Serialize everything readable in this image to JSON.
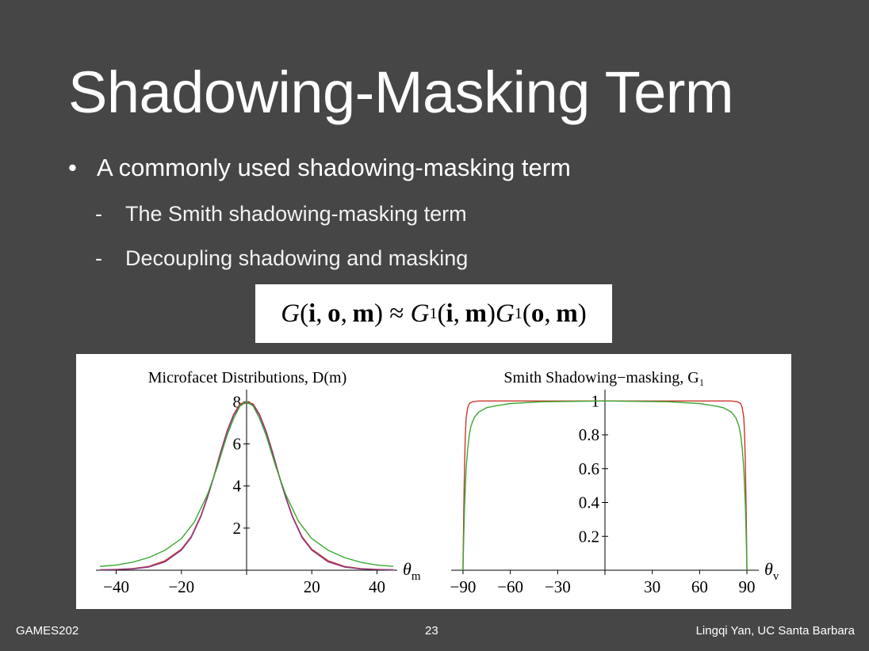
{
  "slide": {
    "title": "Shadowing-Masking Term",
    "bullet": "A commonly used shadowing-masking term",
    "bullet_marker": "•",
    "sub_marker": "-",
    "subbullets": [
      "The Smith shadowing-masking term",
      "Decoupling shadowing and masking"
    ],
    "formula": {
      "lhs_fn": "G",
      "args_full": [
        "i",
        "o",
        "m"
      ],
      "approx": "≈",
      "rhs_fn": "G",
      "rhs_sub": "1",
      "rhs_args1": [
        "i",
        "m"
      ],
      "rhs_args2": [
        "o",
        "m"
      ]
    }
  },
  "footer": {
    "left": "GAMES202",
    "page": "23",
    "right": "Lingqi Yan, UC Santa Barbara"
  },
  "colors": {
    "background": "#464646",
    "red": "#c8382a",
    "green": "#3aa832",
    "purple": "#8a3a8c"
  },
  "chart_data": [
    {
      "type": "line",
      "title": "Microfacet Distributions, D(m)",
      "xlabel": "θm",
      "xlim": [
        -45,
        45
      ],
      "ylim": [
        0,
        8.2
      ],
      "xticks": [
        -40,
        -20,
        20,
        40
      ],
      "yticks": [
        2,
        4,
        6,
        8
      ],
      "series": [
        {
          "color": "#c8382a",
          "x": [
            -45,
            -40,
            -35,
            -30,
            -25,
            -20,
            -17,
            -14,
            -12,
            -10,
            -8,
            -6,
            -4,
            -2,
            0,
            2,
            4,
            6,
            8,
            10,
            12,
            14,
            17,
            20,
            25,
            30,
            35,
            40,
            45
          ],
          "y": [
            0.02,
            0.04,
            0.08,
            0.18,
            0.45,
            1.0,
            1.6,
            2.6,
            3.5,
            4.5,
            5.6,
            6.6,
            7.4,
            7.9,
            8.0,
            7.9,
            7.4,
            6.6,
            5.6,
            4.5,
            3.5,
            2.6,
            1.6,
            1.0,
            0.45,
            0.18,
            0.08,
            0.04,
            0.02
          ]
        },
        {
          "color": "#8a3a8c",
          "x": [
            -45,
            -40,
            -35,
            -30,
            -25,
            -20,
            -17,
            -14,
            -12,
            -10,
            -8,
            -6,
            -4,
            -2,
            0,
            2,
            4,
            6,
            8,
            10,
            12,
            14,
            17,
            20,
            25,
            30,
            35,
            40,
            45
          ],
          "y": [
            0.02,
            0.03,
            0.06,
            0.15,
            0.4,
            0.95,
            1.55,
            2.55,
            3.45,
            4.45,
            5.55,
            6.55,
            7.35,
            7.85,
            7.95,
            7.85,
            7.35,
            6.55,
            5.55,
            4.45,
            3.45,
            2.55,
            1.55,
            0.95,
            0.4,
            0.15,
            0.06,
            0.03,
            0.02
          ]
        },
        {
          "color": "#3aa832",
          "x": [
            -45,
            -40,
            -35,
            -30,
            -25,
            -20,
            -16,
            -12,
            -9,
            -6,
            -4,
            -2,
            0,
            2,
            4,
            6,
            9,
            12,
            16,
            20,
            25,
            30,
            35,
            40,
            45
          ],
          "y": [
            0.18,
            0.25,
            0.38,
            0.6,
            0.95,
            1.5,
            2.3,
            3.6,
            4.9,
            6.4,
            7.2,
            7.8,
            8.0,
            7.8,
            7.2,
            6.4,
            4.9,
            3.6,
            2.3,
            1.5,
            0.95,
            0.6,
            0.38,
            0.25,
            0.18
          ]
        }
      ]
    },
    {
      "type": "line",
      "title": "Smith Shadowing−masking, G₁",
      "xlabel": "θv",
      "xlim": [
        -95,
        95
      ],
      "ylim": [
        0,
        1.02
      ],
      "xticks": [
        -90,
        -60,
        -30,
        30,
        60,
        90
      ],
      "xticklabels": [
        "−90",
        "−60",
        "−30",
        "30",
        "60",
        "90"
      ],
      "yticks": [
        0.2,
        0.4,
        0.6,
        0.8,
        1
      ],
      "yticklabels": [
        "0.2",
        "0.4",
        "0.6",
        "0.8",
        "1"
      ],
      "series": [
        {
          "color": "#c8382a",
          "x": [
            -90,
            -89.5,
            -89,
            -88.5,
            -88,
            -87,
            -86,
            -84,
            -80,
            -70,
            -50,
            0,
            50,
            70,
            80,
            84,
            86,
            87,
            88,
            88.5,
            89,
            89.5,
            90
          ],
          "y": [
            0,
            0.35,
            0.62,
            0.8,
            0.9,
            0.96,
            0.985,
            0.995,
            1,
            1,
            1,
            1,
            1,
            1,
            1,
            0.995,
            0.985,
            0.96,
            0.9,
            0.8,
            0.62,
            0.35,
            0
          ]
        },
        {
          "color": "#3aa832",
          "x": [
            -90,
            -89.5,
            -89,
            -88,
            -87,
            -86,
            -85,
            -83,
            -80,
            -75,
            -70,
            -60,
            -40,
            0,
            40,
            60,
            70,
            75,
            80,
            83,
            85,
            86,
            87,
            88,
            89,
            89.5,
            90
          ],
          "y": [
            0,
            0.2,
            0.38,
            0.6,
            0.72,
            0.8,
            0.85,
            0.9,
            0.935,
            0.96,
            0.97,
            0.985,
            0.995,
            1,
            0.995,
            0.985,
            0.97,
            0.96,
            0.935,
            0.9,
            0.85,
            0.8,
            0.72,
            0.6,
            0.38,
            0.2,
            0
          ]
        }
      ]
    }
  ]
}
